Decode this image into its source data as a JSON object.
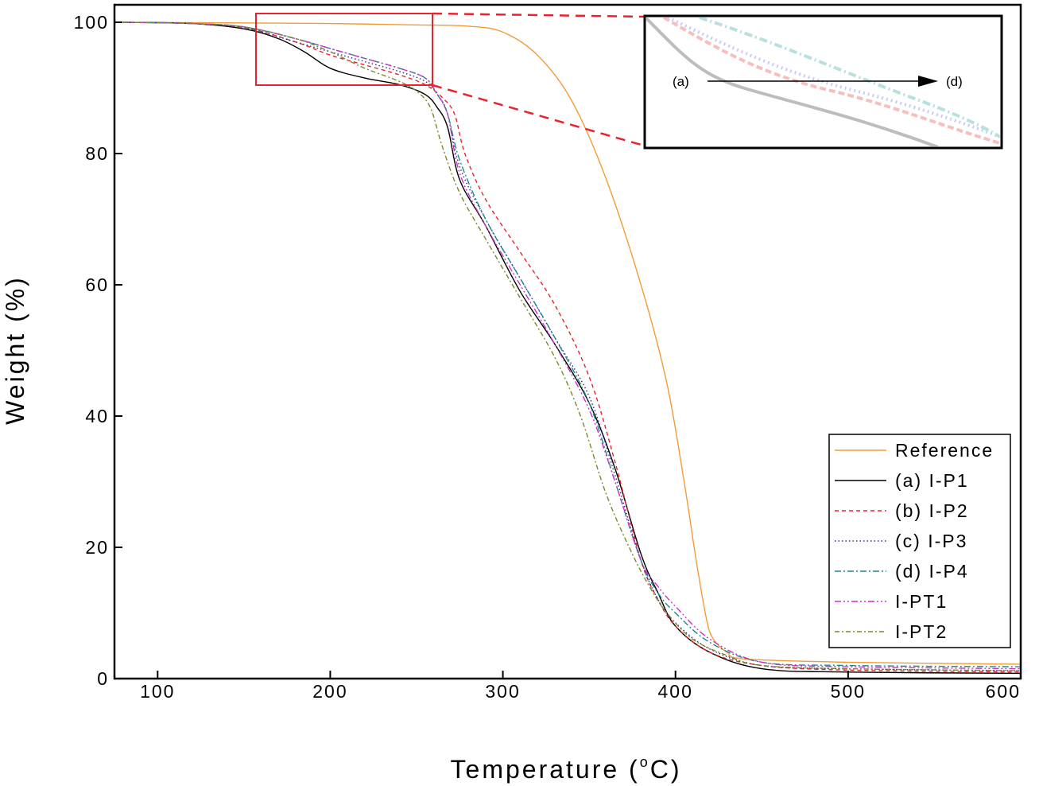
{
  "chart_data": {
    "type": "line",
    "xlabel": "Temperature (°C)",
    "xlabel_parts": {
      "pre": "Temperature (",
      "sup": "o",
      "post": "C)"
    },
    "ylabel": "Weight (%)",
    "xlim": [
      75,
      600
    ],
    "ylim": [
      0,
      100
    ],
    "xticks": [
      100,
      200,
      300,
      400,
      500,
      600
    ],
    "yticks": [
      0,
      20,
      40,
      60,
      80,
      100
    ],
    "grid": false,
    "legend_position": "bottom-right",
    "series": [
      {
        "name": "Reference",
        "color": "#f39c35",
        "dash": "solid",
        "x": [
          80,
          150,
          200,
          250,
          280,
          300,
          320,
          340,
          360,
          380,
          395,
          405,
          412,
          418,
          422,
          430,
          440,
          500,
          600
        ],
        "y": [
          100,
          99.9,
          99.8,
          99.6,
          99.4,
          98.5,
          95,
          88,
          76,
          60,
          45,
          30,
          18,
          9,
          6,
          4,
          3,
          2.5,
          2.2
        ]
      },
      {
        "name": "(a) I-P1",
        "color": "#000000",
        "dash": "solid",
        "x": [
          80,
          120,
          150,
          170,
          185,
          200,
          220,
          240,
          255,
          262,
          268,
          275,
          290,
          310,
          330,
          350,
          365,
          380,
          390,
          400,
          420,
          450,
          500,
          600
        ],
        "y": [
          100,
          99.8,
          99,
          97.5,
          95.5,
          93,
          91.5,
          90.5,
          89,
          87,
          84,
          76,
          69,
          59,
          51,
          42,
          32,
          19,
          13,
          8,
          4,
          1.5,
          1,
          0.8
        ]
      },
      {
        "name": "(b) I-P2",
        "color": "#e8232b",
        "dash": "5,4",
        "x": [
          80,
          120,
          150,
          180,
          200,
          220,
          240,
          255,
          265,
          272,
          278,
          290,
          310,
          330,
          350,
          365,
          380,
          390,
          400,
          420,
          450,
          500,
          600
        ],
        "y": [
          100,
          99.8,
          99.2,
          97,
          95,
          93.5,
          92,
          90.5,
          88.5,
          86,
          80,
          73,
          65,
          57,
          46,
          33,
          18,
          12,
          8,
          4,
          2,
          1.3,
          1
        ]
      },
      {
        "name": "(c) I-P3",
        "color": "#2a2a8e",
        "dash": "1.5,3",
        "x": [
          80,
          120,
          150,
          180,
          200,
          220,
          240,
          255,
          262,
          268,
          275,
          290,
          310,
          330,
          350,
          365,
          380,
          390,
          400,
          420,
          450,
          500,
          600
        ],
        "y": [
          100,
          99.8,
          99.2,
          97,
          95.5,
          94,
          92.5,
          91,
          89,
          86,
          78,
          70,
          61,
          52,
          43,
          31,
          18,
          12,
          8.5,
          4.5,
          2,
          1.5,
          1.2
        ]
      },
      {
        "name": "(d) I-P4",
        "color": "#1d8a8a",
        "dash": "8,3,2,3",
        "x": [
          80,
          120,
          150,
          180,
          200,
          220,
          240,
          255,
          262,
          268,
          275,
          290,
          310,
          330,
          350,
          365,
          380,
          390,
          400,
          420,
          450,
          500,
          600
        ],
        "y": [
          100,
          99.8,
          99.3,
          97.5,
          96,
          94.5,
          93,
          91.5,
          89,
          86,
          79,
          70,
          61,
          52,
          42,
          30,
          18,
          13,
          10,
          5.5,
          2.5,
          2,
          1.8
        ]
      },
      {
        "name": "I-PT1",
        "color": "#d02fd0",
        "dash": "8,3,2,3,2,3",
        "x": [
          80,
          120,
          150,
          180,
          200,
          220,
          240,
          255,
          262,
          268,
          275,
          290,
          310,
          330,
          350,
          365,
          380,
          390,
          400,
          420,
          450,
          500,
          600
        ],
        "y": [
          100,
          99.8,
          99.3,
          97.5,
          96,
          94.5,
          93,
          91.5,
          89,
          86,
          77,
          69,
          60,
          51,
          41,
          30,
          18,
          14,
          11,
          6,
          2.5,
          1.8,
          1.5
        ]
      },
      {
        "name": "I-PT2",
        "color": "#7a8a2a",
        "dash": "6,3,2,3",
        "x": [
          80,
          120,
          150,
          180,
          200,
          220,
          240,
          250,
          258,
          265,
          275,
          290,
          310,
          330,
          345,
          360,
          375,
          385,
          395,
          410,
          430,
          450,
          500,
          600
        ],
        "y": [
          100,
          99.8,
          99.3,
          97.5,
          95.5,
          93,
          91,
          89.5,
          87,
          81,
          74,
          67,
          58,
          49,
          40,
          28,
          19,
          14,
          10,
          6,
          3.5,
          2,
          1.5,
          1.2
        ]
      }
    ],
    "inset": {
      "start_label": "(a)",
      "end_label": "(d)"
    }
  }
}
